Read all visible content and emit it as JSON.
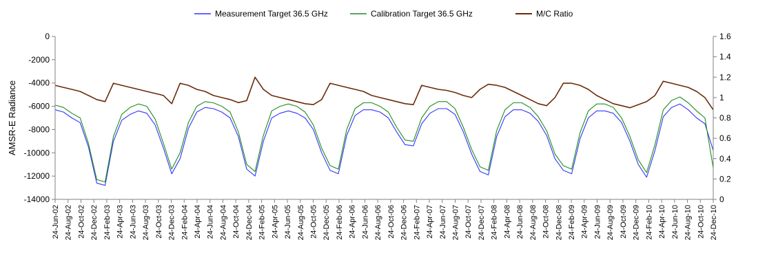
{
  "chart_data": {
    "type": "line",
    "title": "",
    "xlabel": "",
    "ylabel": "AMSR-E Radiance",
    "y2label": "",
    "ylim": [
      -14000,
      0
    ],
    "y2lim": [
      0,
      1.6
    ],
    "grid": false,
    "legend_position": "top",
    "yticks": [
      "0",
      "-2000",
      "-4000",
      "-6000",
      "-8000",
      "-10000",
      "-12000",
      "-14000"
    ],
    "y2ticks": [
      "1.6",
      "1.4",
      "1.2",
      "1",
      "0.8",
      "0.6",
      "0.4",
      "0.2",
      "0"
    ],
    "xticks": [
      "24-Jun-02",
      "24-Aug-02",
      "24-Oct-02",
      "24-Dec-02",
      "24-Feb-03",
      "24-Apr-03",
      "24-Jun-03",
      "24-Aug-03",
      "24-Oct-03",
      "24-Dec-03",
      "24-Feb-04",
      "24-Apr-04",
      "24-Jun-04",
      "24-Aug-04",
      "24-Oct-04",
      "24-Dec-04",
      "24-Feb-05",
      "24-Apr-05",
      "24-Jun-05",
      "24-Aug-05",
      "24-Oct-05",
      "24-Dec-05",
      "24-Feb-06",
      "24-Apr-06",
      "24-Jun-06",
      "24-Aug-06",
      "24-Oct-06",
      "24-Dec-06",
      "24-Feb-07",
      "24-Apr-07",
      "24-Jun-07",
      "24-Aug-07",
      "24-Oct-07",
      "24-Dec-07",
      "24-Feb-08",
      "24-Apr-08",
      "24-Jun-08",
      "24-Aug-08",
      "24-Oct-08",
      "24-Dec-08",
      "24-Feb-09",
      "24-Apr-09",
      "24-Jun-09",
      "24-Aug-09",
      "24-Oct-09",
      "24-Dec-09",
      "24-Feb-10",
      "24-Apr-10",
      "24-Jun-10",
      "24-Aug-10",
      "24-Oct-10",
      "24-Dec-10"
    ],
    "series": [
      {
        "name": "Measurement Target 36.5 GHz",
        "axis": "left",
        "color": "#3333ff",
        "values": [
          -6300,
          -6500,
          -7000,
          -7400,
          -9500,
          -12600,
          -12800,
          -9000,
          -7200,
          -6700,
          -6400,
          -6600,
          -7600,
          -9600,
          -11800,
          -10500,
          -7900,
          -6500,
          -6100,
          -6200,
          -6500,
          -7000,
          -8600,
          -11400,
          -12000,
          -9000,
          -7000,
          -6600,
          -6400,
          -6600,
          -7000,
          -8000,
          -10000,
          -11500,
          -11800,
          -8500,
          -6800,
          -6300,
          -6300,
          -6500,
          -7000,
          -8200,
          -9300,
          -9400,
          -7500,
          -6600,
          -6200,
          -6200,
          -6700,
          -8200,
          -10100,
          -11600,
          -11900,
          -8600,
          -6900,
          -6300,
          -6300,
          -6600,
          -7300,
          -8500,
          -10500,
          -11500,
          -11800,
          -8800,
          -7000,
          -6400,
          -6400,
          -6600,
          -7400,
          -9000,
          -11000,
          -12100,
          -9800,
          -6900,
          -6100,
          -5800,
          -6300,
          -7000,
          -7500,
          -9800
        ]
      },
      {
        "name": "Calibration Target 36.5 GHz",
        "axis": "left",
        "color": "#1e8c1e",
        "values": [
          -5900,
          -6100,
          -6600,
          -7000,
          -9200,
          -12300,
          -12500,
          -8600,
          -6700,
          -6100,
          -5800,
          -6000,
          -7100,
          -9200,
          -11400,
          -10000,
          -7400,
          -6000,
          -5600,
          -5700,
          -6000,
          -6500,
          -8200,
          -11000,
          -11600,
          -8500,
          -6400,
          -6000,
          -5800,
          -6000,
          -6500,
          -7600,
          -9600,
          -11100,
          -11400,
          -8000,
          -6200,
          -5700,
          -5700,
          -6000,
          -6500,
          -7800,
          -8900,
          -9000,
          -7000,
          -6000,
          -5600,
          -5600,
          -6200,
          -7800,
          -9700,
          -11200,
          -11500,
          -8100,
          -6300,
          -5700,
          -5700,
          -6100,
          -6900,
          -8100,
          -10100,
          -11100,
          -11400,
          -8300,
          -6400,
          -5800,
          -5800,
          -6100,
          -7000,
          -8600,
          -10600,
          -11700,
          -9300,
          -6300,
          -5500,
          -5200,
          -5700,
          -6400,
          -7000,
          -11300
        ]
      },
      {
        "name": "M/C Ratio",
        "axis": "right",
        "color": "#6b2a08",
        "values": [
          1.12,
          1.1,
          1.08,
          1.06,
          1.02,
          0.98,
          0.96,
          1.14,
          1.12,
          1.1,
          1.08,
          1.06,
          1.04,
          1.02,
          0.94,
          1.14,
          1.12,
          1.08,
          1.06,
          1.02,
          1.0,
          0.98,
          0.95,
          0.97,
          1.2,
          1.08,
          1.02,
          1.0,
          0.98,
          0.96,
          0.94,
          0.93,
          0.98,
          1.14,
          1.12,
          1.1,
          1.08,
          1.06,
          1.02,
          1.0,
          0.98,
          0.96,
          0.94,
          0.93,
          1.12,
          1.1,
          1.08,
          1.07,
          1.05,
          1.02,
          1.0,
          1.08,
          1.13,
          1.12,
          1.1,
          1.06,
          1.02,
          0.98,
          0.94,
          0.92,
          1.0,
          1.14,
          1.14,
          1.12,
          1.08,
          1.02,
          0.98,
          0.94,
          0.92,
          0.9,
          0.93,
          0.96,
          1.02,
          1.16,
          1.14,
          1.12,
          1.1,
          1.06,
          1.0,
          0.88
        ]
      }
    ]
  }
}
